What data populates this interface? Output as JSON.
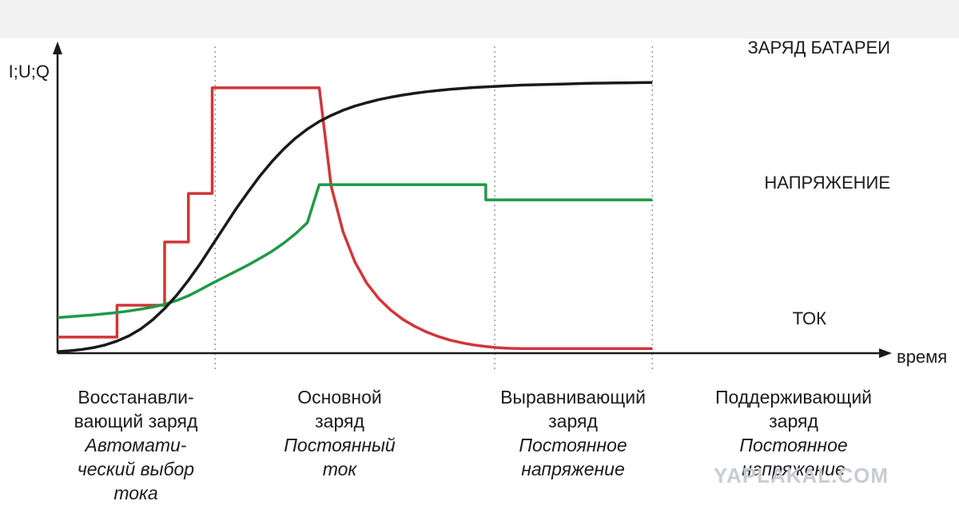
{
  "chart_data": {
    "type": "line",
    "ylabel": "I;U;Q",
    "xlabel": "время",
    "x": [
      0,
      0.2,
      0.4,
      0.6,
      0.8,
      1.0,
      1.2,
      1.4,
      1.6,
      1.8,
      2.0,
      2.2,
      2.4,
      2.6,
      2.8,
      3.0,
      3.2,
      3.4,
      3.6,
      3.8,
      4.0,
      4.2,
      4.4,
      4.6,
      4.8,
      5.0,
      5.2,
      5.4,
      5.6,
      5.8,
      6.0,
      6.2,
      6.4,
      6.6,
      6.8,
      7.0,
      7.2,
      7.4,
      7.6,
      7.8,
      8.0,
      8.2,
      8.4,
      8.6,
      8.8,
      9.0,
      9.2,
      9.4,
      9.6,
      9.8,
      10.0
    ],
    "series": [
      {
        "name": "ЗАРЯД БАТАРЕИ",
        "color": "#1a1a1a",
        "values": [
          0.5,
          0.8,
          1.2,
          1.8,
          2.7,
          4.0,
          5.7,
          8.0,
          11.0,
          14.7,
          19.0,
          24.0,
          29.5,
          35.5,
          41.5,
          47.5,
          53.0,
          58.3,
          63.0,
          67.2,
          70.8,
          73.8,
          76.3,
          78.3,
          80.0,
          81.4,
          82.5,
          83.5,
          84.3,
          85.0,
          85.6,
          86.1,
          86.5,
          86.9,
          87.2,
          87.5,
          87.7,
          87.9,
          88.1,
          88.3,
          88.4,
          88.5,
          88.6,
          88.7,
          88.8,
          88.9,
          88.95,
          89.0,
          89.05,
          89.1,
          89.15
        ]
      },
      {
        "name": "НАПРЯЖЕНИЕ",
        "color": "#1e9a46",
        "values": [
          11.7,
          12.0,
          12.3,
          12.6,
          13.0,
          13.4,
          13.9,
          14.5,
          15.2,
          16.1,
          17.3,
          18.9,
          20.9,
          23.0,
          25.0,
          27.0,
          29.0,
          31.2,
          33.5,
          36.2,
          39.3,
          43.0,
          55.5,
          55.5,
          55.5,
          55.5,
          55.5,
          55.5,
          55.5,
          55.5,
          55.5,
          55.5,
          55.5,
          55.5,
          55.5,
          55.5,
          50.5,
          50.5,
          50.5,
          50.5,
          50.5,
          50.5,
          50.5,
          50.5,
          50.5,
          50.5,
          50.5,
          50.5,
          50.5,
          50.5,
          50.5
        ]
      },
      {
        "name": "ТОК",
        "color": "#d1353a",
        "values": [
          5.3,
          5.3,
          5.3,
          5.3,
          5.3,
          15.8,
          15.8,
          15.8,
          15.8,
          36.6,
          36.6,
          52.6,
          52.6,
          87.4,
          87.4,
          87.4,
          87.4,
          87.4,
          87.4,
          87.4,
          87.4,
          87.4,
          87.4,
          55.0,
          40.0,
          30.0,
          23.0,
          18.0,
          14.2,
          11.2,
          8.9,
          7.0,
          5.5,
          4.3,
          3.4,
          2.7,
          2.2,
          1.8,
          1.6,
          1.5,
          1.5,
          1.5,
          1.5,
          1.5,
          1.5,
          1.5,
          1.5,
          1.5,
          1.5,
          1.5,
          1.5
        ]
      }
    ],
    "phase_boundaries": [
      2.65,
      7.35,
      10.0
    ],
    "ylim": [
      0,
      100
    ],
    "xlim": [
      0,
      14.0
    ],
    "grid": false
  },
  "phases": [
    {
      "name_line1": "Восстанавли-",
      "name_line2": "вающий заряд",
      "desc_line1": "Автомати-",
      "desc_line2": "ческий выбор",
      "desc_line3": "тока"
    },
    {
      "name_line1": "Основной",
      "name_line2": "заряд",
      "desc_line1": "Постоянный",
      "desc_line2": "ток",
      "desc_line3": ""
    },
    {
      "name_line1": "Выравнивающий",
      "name_line2": "заряд",
      "desc_line1": "Постоянное",
      "desc_line2": "напряжение",
      "desc_line3": ""
    },
    {
      "name_line1": "Поддерживающий",
      "name_line2": "заряд",
      "desc_line1": "Постоянное",
      "desc_line2": "напряжение",
      "desc_line3": ""
    }
  ],
  "watermark": "YAPLAKAL.COM",
  "colors": {
    "axis": "#1a1a1a",
    "divider": "#9a9a9a",
    "topbar": "#f2f2f2"
  }
}
